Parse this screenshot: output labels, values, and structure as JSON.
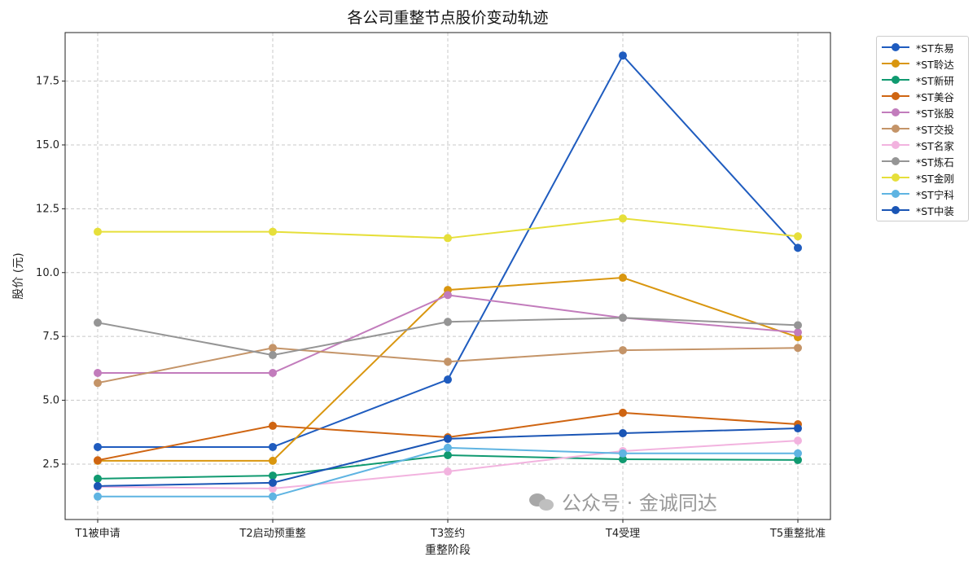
{
  "chart_data": {
    "type": "line",
    "title": "各公司重整节点股价变动轨迹",
    "xlabel": "重整阶段",
    "ylabel": "股价 (元)",
    "categories": [
      "T1被申请",
      "T2启动预重整",
      "T3签约",
      "T4受理",
      "T5重整批准"
    ],
    "yticks": [
      2.5,
      5.0,
      7.5,
      10.0,
      12.5,
      15.0,
      17.5
    ],
    "ytick_labels": [
      "2.5",
      "5.0",
      "7.5",
      "10.0",
      "12.5",
      "15.0",
      "17.5"
    ],
    "ylim": [
      0.33,
      19.4
    ],
    "grid": true,
    "legend_placement": "outside-top-right",
    "series": [
      {
        "name": "*ST东易",
        "color": "#1f5cbf",
        "values": [
          3.17,
          3.17,
          5.81,
          18.5,
          10.97
        ]
      },
      {
        "name": "*ST聆达",
        "color": "#d9960f",
        "values": [
          2.63,
          2.63,
          9.32,
          9.8,
          7.47
        ]
      },
      {
        "name": "*ST新研",
        "color": "#109a70",
        "values": [
          1.93,
          2.05,
          2.85,
          2.69,
          2.66
        ]
      },
      {
        "name": "*ST美谷",
        "color": "#cf6512",
        "values": [
          2.65,
          4.0,
          3.55,
          4.51,
          4.06
        ]
      },
      {
        "name": "*ST张股",
        "color": "#c27cbc",
        "values": [
          6.07,
          6.07,
          9.12,
          8.23,
          7.66
        ]
      },
      {
        "name": "*ST交投",
        "color": "#c49468",
        "values": [
          5.68,
          7.05,
          6.51,
          6.96,
          7.05
        ]
      },
      {
        "name": "*ST名家",
        "color": "#f2b3df",
        "values": [
          1.61,
          1.54,
          2.21,
          3.01,
          3.42
        ]
      },
      {
        "name": "*ST炼石",
        "color": "#959595",
        "values": [
          8.04,
          6.77,
          8.07,
          8.23,
          7.94
        ]
      },
      {
        "name": "*ST金刚",
        "color": "#e6df3a",
        "values": [
          11.6,
          11.6,
          11.35,
          12.12,
          11.42
        ]
      },
      {
        "name": "*ST宁科",
        "color": "#5fb4e2",
        "values": [
          1.23,
          1.23,
          3.14,
          2.92,
          2.92
        ]
      },
      {
        "name": "*ST中装",
        "color": "#1a55b5",
        "values": [
          1.64,
          1.77,
          3.49,
          3.71,
          3.9
        ]
      }
    ]
  },
  "watermark": {
    "text": "公众号 · 金诚同达"
  }
}
